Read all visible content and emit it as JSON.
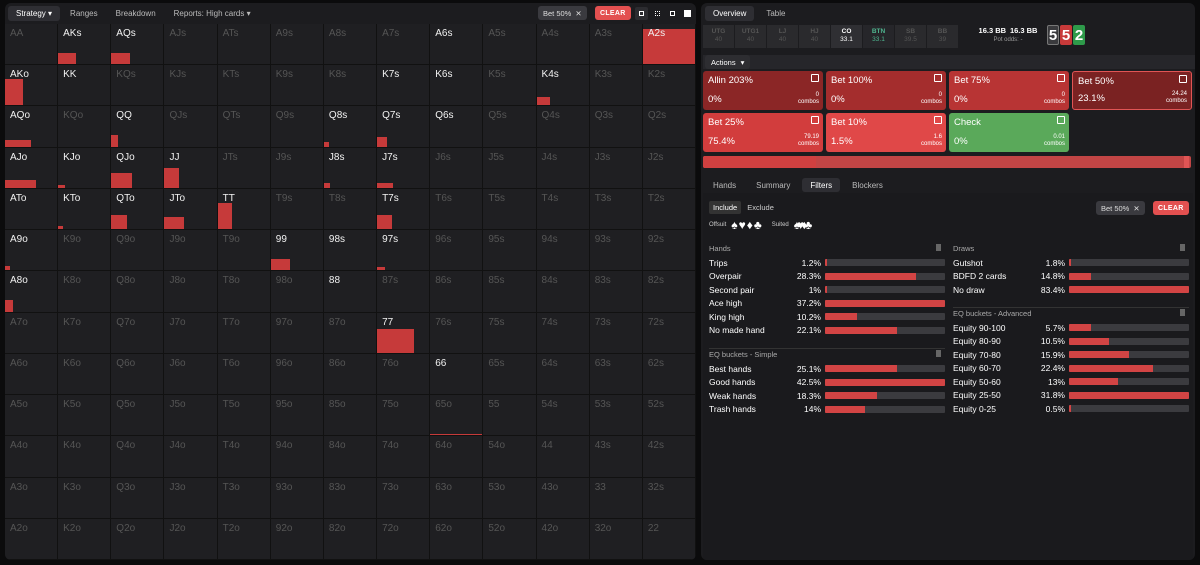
{
  "left_panel": {
    "tabs": [
      {
        "label": "Strategy",
        "dropdown": true,
        "active": true
      },
      {
        "label": "Ranges",
        "dropdown": false,
        "active": false
      },
      {
        "label": "Breakdown",
        "dropdown": false,
        "active": false
      },
      {
        "label": "Reports: High cards",
        "dropdown": true,
        "active": false
      }
    ],
    "filter_pill": "Bet 50%",
    "clear_label": "CLEAR",
    "view_icons": [
      "compact-view-icon",
      "grid-view-icon",
      "cell-view-icon",
      "square-view-icon"
    ],
    "grid": {
      "rows": [
        [
          "AA",
          "AKs",
          "AQs",
          "AJs",
          "ATs",
          "A9s",
          "A8s",
          "A7s",
          "A6s",
          "A5s",
          "A4s",
          "A3s",
          "A2s"
        ],
        [
          "AKo",
          "KK",
          "KQs",
          "KJs",
          "KTs",
          "K9s",
          "K8s",
          "K7s",
          "K6s",
          "K5s",
          "K4s",
          "K3s",
          "K2s"
        ],
        [
          "AQo",
          "KQo",
          "QQ",
          "QJs",
          "QTs",
          "Q9s",
          "Q8s",
          "Q7s",
          "Q6s",
          "Q5s",
          "Q4s",
          "Q3s",
          "Q2s"
        ],
        [
          "AJo",
          "KJo",
          "QJo",
          "JJ",
          "JTs",
          "J9s",
          "J8s",
          "J7s",
          "J6s",
          "J5s",
          "J4s",
          "J3s",
          "J2s"
        ],
        [
          "ATo",
          "KTo",
          "QTo",
          "JTo",
          "TT",
          "T9s",
          "T8s",
          "T7s",
          "T6s",
          "T5s",
          "T4s",
          "T3s",
          "T2s"
        ],
        [
          "A9o",
          "K9o",
          "Q9o",
          "J9o",
          "T9o",
          "99",
          "98s",
          "97s",
          "96s",
          "95s",
          "94s",
          "93s",
          "92s"
        ],
        [
          "A8o",
          "K8o",
          "Q8o",
          "J8o",
          "T8o",
          "98o",
          "88",
          "87s",
          "86s",
          "85s",
          "84s",
          "83s",
          "82s"
        ],
        [
          "A7o",
          "K7o",
          "Q7o",
          "J7o",
          "T7o",
          "97o",
          "87o",
          "77",
          "76s",
          "75s",
          "74s",
          "73s",
          "72s"
        ],
        [
          "A6o",
          "K6o",
          "Q6o",
          "J6o",
          "T6o",
          "96o",
          "86o",
          "76o",
          "66",
          "65s",
          "64s",
          "63s",
          "62s"
        ],
        [
          "A5o",
          "K5o",
          "Q5o",
          "J5o",
          "T5o",
          "95o",
          "85o",
          "75o",
          "65o",
          "55",
          "54s",
          "53s",
          "52s"
        ],
        [
          "A4o",
          "K4o",
          "Q4o",
          "J4o",
          "T4o",
          "94o",
          "84o",
          "74o",
          "64o",
          "54o",
          "44",
          "43s",
          "42s"
        ],
        [
          "A3o",
          "K3o",
          "Q3o",
          "J3o",
          "T3o",
          "93o",
          "83o",
          "73o",
          "63o",
          "53o",
          "43o",
          "33",
          "32s"
        ],
        [
          "A2o",
          "K2o",
          "Q2o",
          "J2o",
          "T2o",
          "92o",
          "82o",
          "72o",
          "62o",
          "52o",
          "42o",
          "32o",
          "22"
        ]
      ],
      "highlighted": [
        "AKs",
        "AQs",
        "A6s",
        "A2s",
        "AKo",
        "KK",
        "K7s",
        "K6s",
        "K4s",
        "AQo",
        "QQ",
        "Q8s",
        "Q7s",
        "Q6s",
        "AJo",
        "KJo",
        "QJo",
        "JJ",
        "J8s",
        "J7s",
        "ATo",
        "KTo",
        "QTo",
        "JTo",
        "TT",
        "T7s",
        "A9o",
        "99",
        "98s",
        "97s",
        "A8o",
        "88",
        "77",
        "66"
      ],
      "bars": [
        {
          "hand": "AKs",
          "width": 0.35,
          "height": 0.28
        },
        {
          "hand": "AQs",
          "width": 0.35,
          "height": 0.28
        },
        {
          "hand": "A2s",
          "width": 1.0,
          "height": 0.88
        },
        {
          "hand": "AKo",
          "width": 0.35,
          "height": 0.65
        },
        {
          "hand": "K4s",
          "width": 0.25,
          "height": 0.22
        },
        {
          "hand": "AQo",
          "width": 0.5,
          "height": 0.17
        },
        {
          "hand": "QQ",
          "width": 0.13,
          "height": 0.3
        },
        {
          "hand": "Q8s",
          "width": 0.1,
          "height": 0.12
        },
        {
          "hand": "Q7s",
          "width": 0.2,
          "height": 0.25
        },
        {
          "hand": "AJo",
          "width": 0.6,
          "height": 0.2
        },
        {
          "hand": "KJo",
          "width": 0.13,
          "height": 0.08
        },
        {
          "hand": "QJo",
          "width": 0.4,
          "height": 0.38
        },
        {
          "hand": "JJ",
          "width": 0.27,
          "height": 0.5
        },
        {
          "hand": "J8s",
          "width": 0.12,
          "height": 0.12
        },
        {
          "hand": "J7s",
          "width": 0.3,
          "height": 0.12
        },
        {
          "hand": "KTo",
          "width": 0.1,
          "height": 0.08
        },
        {
          "hand": "QTo",
          "width": 0.3,
          "height": 0.35
        },
        {
          "hand": "JTo",
          "width": 0.37,
          "height": 0.3
        },
        {
          "hand": "TT",
          "width": 0.28,
          "height": 0.65
        },
        {
          "hand": "T7s",
          "width": 0.28,
          "height": 0.35
        },
        {
          "hand": "A9o",
          "width": 0.1,
          "height": 0.12
        },
        {
          "hand": "99",
          "width": 0.37,
          "height": 0.28
        },
        {
          "hand": "97s",
          "width": 0.15,
          "height": 0.08
        },
        {
          "hand": "A8o",
          "width": 0.15,
          "height": 0.28
        },
        {
          "hand": "77",
          "width": 0.7,
          "height": 0.6
        },
        {
          "hand": "65o",
          "width": 1.0,
          "height": 0.03
        }
      ]
    }
  },
  "right_panel": {
    "tabs": [
      {
        "label": "Overview",
        "active": true
      },
      {
        "label": "Table",
        "active": false
      }
    ],
    "seats": [
      {
        "name": "UTG",
        "stack": "40",
        "style": "dim"
      },
      {
        "name": "UTG1",
        "stack": "40",
        "style": "dim"
      },
      {
        "name": "LJ",
        "stack": "40",
        "style": "dim"
      },
      {
        "name": "HJ",
        "stack": "40",
        "style": "dim"
      },
      {
        "name": "CO",
        "stack": "33.1",
        "style": "co"
      },
      {
        "name": "BTN",
        "stack": "33.1",
        "style": "btn"
      },
      {
        "name": "SB",
        "stack": "39.5",
        "style": "dim"
      },
      {
        "name": "BB",
        "stack": "39",
        "style": "dim"
      }
    ],
    "stack_left": "16.3 BB",
    "stack_right": "16.3 BB",
    "pot_odds": "Pot odds: -",
    "board_cards": [
      {
        "rank": "5",
        "color": "#3a3a3d"
      },
      {
        "rank": "5",
        "color": "#c83a3a"
      },
      {
        "rank": "2",
        "color": "#2e9a4a"
      }
    ],
    "actions_label": "Actions",
    "actions": [
      {
        "name": "Allin 203%",
        "pct": "0%",
        "combos": "0",
        "combos_label": "combos",
        "color": "#8b2626",
        "selected": false
      },
      {
        "name": "Bet 100%",
        "pct": "0%",
        "combos": "0",
        "combos_label": "combos",
        "color": "#a42d2d",
        "selected": false
      },
      {
        "name": "Bet 75%",
        "pct": "0%",
        "combos": "0",
        "combos_label": "combos",
        "color": "#b83434",
        "selected": false
      },
      {
        "name": "Bet 50%",
        "pct": "23.1%",
        "combos": "24.24",
        "combos_label": "combos",
        "color": "#7a2222",
        "selected": true
      },
      {
        "name": "Bet 25%",
        "pct": "75.4%",
        "combos": "79.19",
        "combos_label": "combos",
        "color": "#d23d3d",
        "selected": false
      },
      {
        "name": "Bet 10%",
        "pct": "1.5%",
        "combos": "1.6",
        "combos_label": "combos",
        "color": "#e04848",
        "selected": false
      },
      {
        "name": "Check",
        "pct": "0%",
        "combos": "0.01",
        "combos_label": "combos",
        "color": "#5aa95a",
        "selected": false
      }
    ],
    "subtabs": [
      {
        "label": "Hands",
        "active": false
      },
      {
        "label": "Summary",
        "active": false
      },
      {
        "label": "Filters",
        "active": true
      },
      {
        "label": "Blockers",
        "active": false
      }
    ],
    "filters": {
      "include_label": "Include",
      "exclude_label": "Exclude",
      "offsuit_label": "Offsuit",
      "suited_label": "Suited",
      "pill": "Bet 50%",
      "clear_label": "CLEAR",
      "hands_title": "Hands",
      "hands": [
        {
          "label": "Trips",
          "value": "1.2%",
          "frac": 0.012
        },
        {
          "label": "Overpair",
          "value": "28.3%",
          "frac": 0.76
        },
        {
          "label": "Second pair",
          "value": "1%",
          "frac": 0.01
        },
        {
          "label": "Ace high",
          "value": "37.2%",
          "frac": 1.0
        },
        {
          "label": "King high",
          "value": "10.2%",
          "frac": 0.27
        },
        {
          "label": "No made hand",
          "value": "22.1%",
          "frac": 0.6
        }
      ],
      "eq_simple_title": "EQ buckets - Simple",
      "eq_simple": [
        {
          "label": "Best hands",
          "value": "25.1%",
          "frac": 0.6
        },
        {
          "label": "Good hands",
          "value": "42.5%",
          "frac": 1.0
        },
        {
          "label": "Weak hands",
          "value": "18.3%",
          "frac": 0.43
        },
        {
          "label": "Trash hands",
          "value": "14%",
          "frac": 0.33
        }
      ],
      "draws_title": "Draws",
      "draws": [
        {
          "label": "Gutshot",
          "value": "1.8%",
          "frac": 0.02
        },
        {
          "label": "BDFD 2 cards",
          "value": "14.8%",
          "frac": 0.18
        },
        {
          "label": "No draw",
          "value": "83.4%",
          "frac": 1.0
        }
      ],
      "eq_adv_title": "EQ buckets - Advanced",
      "eq_adv": [
        {
          "label": "Equity 90-100",
          "value": "5.7%",
          "frac": 0.18
        },
        {
          "label": "Equity 80-90",
          "value": "10.5%",
          "frac": 0.33
        },
        {
          "label": "Equity 70-80",
          "value": "15.9%",
          "frac": 0.5
        },
        {
          "label": "Equity 60-70",
          "value": "22.4%",
          "frac": 0.7
        },
        {
          "label": "Equity 50-60",
          "value": "13%",
          "frac": 0.41
        },
        {
          "label": "Equity 25-50",
          "value": "31.8%",
          "frac": 1.0
        },
        {
          "label": "Equity 0-25",
          "value": "0.5%",
          "frac": 0.02
        }
      ]
    }
  }
}
